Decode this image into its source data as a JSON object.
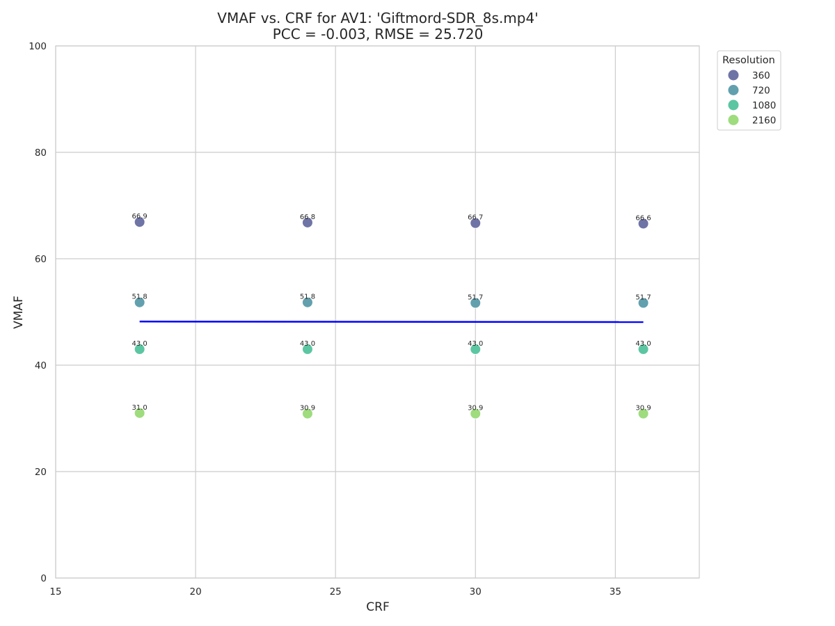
{
  "chart_data": {
    "type": "scatter",
    "title": "VMAF vs. CRF for AV1: 'Giftmord-SDR_8s.mp4'",
    "subtitle": "PCC = -0.003, RMSE = 25.720",
    "xlabel": "CRF",
    "ylabel": "VMAF",
    "xlim": [
      15,
      38
    ],
    "ylim": [
      0,
      100
    ],
    "xticks": [
      15,
      20,
      25,
      30,
      35
    ],
    "yticks": [
      0,
      20,
      40,
      60,
      80,
      100
    ],
    "grid": true,
    "legend": {
      "title": "Resolution",
      "placement": "upper-right-outside"
    },
    "series": [
      {
        "name": "360",
        "color": "#6f74a6",
        "x": [
          18,
          24,
          30,
          36
        ],
        "y": [
          66.9,
          66.8,
          66.7,
          66.6
        ],
        "labels": [
          "66.9",
          "66.8",
          "66.7",
          "66.6"
        ]
      },
      {
        "name": "720",
        "color": "#62a0ae",
        "x": [
          18,
          24,
          30,
          36
        ],
        "y": [
          51.8,
          51.8,
          51.7,
          51.7
        ],
        "labels": [
          "51.8",
          "51.8",
          "51.7",
          "51.7"
        ]
      },
      {
        "name": "1080",
        "color": "#5cc6a2",
        "x": [
          18,
          24,
          30,
          36
        ],
        "y": [
          43.0,
          43.0,
          43.0,
          43.0
        ],
        "labels": [
          "43.0",
          "43.0",
          "43.0",
          "43.0"
        ]
      },
      {
        "name": "2160",
        "color": "#9edc7e",
        "x": [
          18,
          24,
          30,
          36
        ],
        "y": [
          31.0,
          30.9,
          30.9,
          30.9
        ],
        "labels": [
          "31.0",
          "30.9",
          "30.9",
          "30.9"
        ]
      }
    ],
    "regression": {
      "name": "fit",
      "color": "#0000ff",
      "x": [
        18,
        36
      ],
      "y": [
        48.2,
        48.1
      ]
    }
  }
}
